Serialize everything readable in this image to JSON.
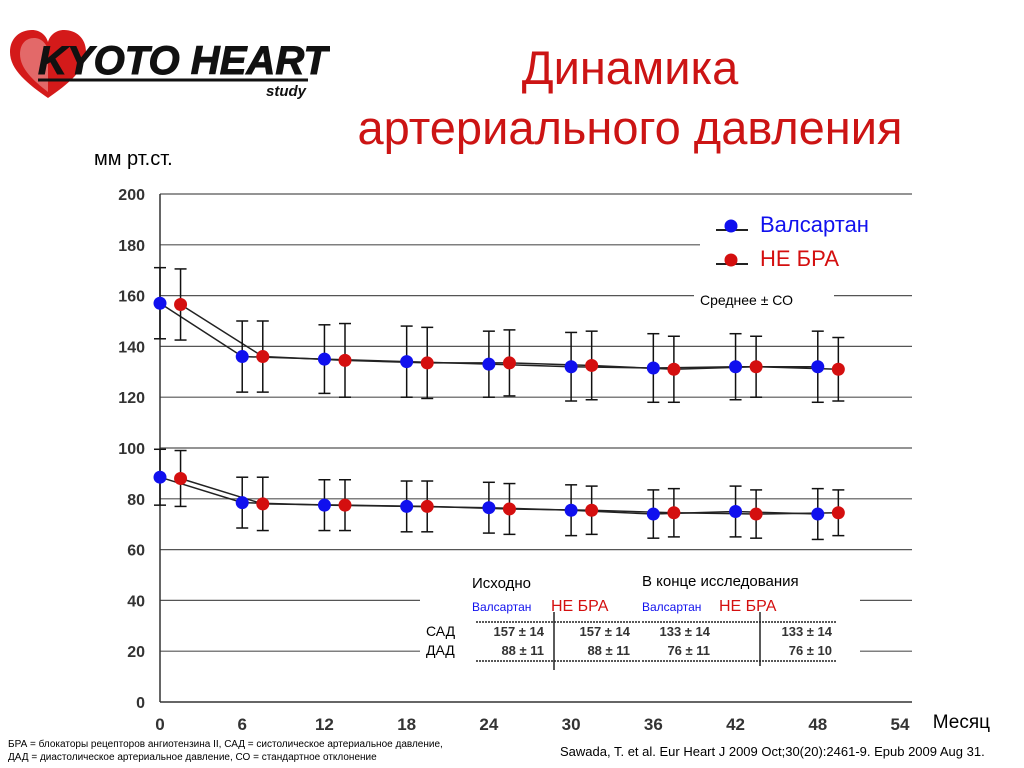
{
  "header": {
    "logo_text": "KYOTO HEART",
    "logo_sub": "study",
    "title_line1": "Динамика",
    "title_line2": "артериального давления"
  },
  "colors": {
    "title": "#cc1414",
    "valsartan": "#1010ee",
    "non_arb": "#d40f0f"
  },
  "y_unit_label": "мм рт.ст.",
  "chart_data": {
    "type": "line",
    "x_label": "Месяц",
    "x_ticks": [
      0,
      6,
      12,
      18,
      24,
      30,
      36,
      42,
      48,
      54
    ],
    "y_ticks": [
      0,
      20,
      40,
      60,
      80,
      100,
      120,
      140,
      160,
      180,
      200
    ],
    "xlim": [
      0,
      54
    ],
    "ylim": [
      0,
      200
    ],
    "grid": "horizontal",
    "legend_position": "top-right",
    "error_bar_label": "Среднее ± СО",
    "series": [
      {
        "name": "Валсартан",
        "group": "sbp",
        "color": "#1010ee",
        "x": [
          0,
          6,
          12,
          18,
          24,
          30,
          36,
          42,
          48
        ],
        "y": [
          157,
          136,
          135,
          134,
          133,
          132,
          131.5,
          132,
          132
        ],
        "err": [
          14,
          14,
          13.5,
          14,
          13,
          13.5,
          13.5,
          13,
          14
        ]
      },
      {
        "name": "НЕ БРА",
        "group": "sbp",
        "color": "#d40f0f",
        "x": [
          1.5,
          7.5,
          13.5,
          19.5,
          25.5,
          31.5,
          37.5,
          43.5,
          49.5
        ],
        "y": [
          156.5,
          136,
          134.5,
          133.5,
          133.5,
          132.5,
          131,
          132,
          131
        ],
        "err": [
          14,
          14,
          14.5,
          14,
          13,
          13.5,
          13,
          12,
          12.5
        ]
      },
      {
        "name": "Валсартан",
        "group": "dbp",
        "color": "#1010ee",
        "x": [
          0,
          6,
          12,
          18,
          24,
          30,
          36,
          42,
          48
        ],
        "y": [
          88.5,
          78.5,
          77.5,
          77,
          76.5,
          75.5,
          74,
          75,
          74
        ],
        "err": [
          11,
          10,
          10,
          10,
          10,
          10,
          9.5,
          10,
          10
        ]
      },
      {
        "name": "НЕ БРА",
        "group": "dbp",
        "color": "#d40f0f",
        "x": [
          1.5,
          7.5,
          13.5,
          19.5,
          25.5,
          31.5,
          37.5,
          43.5,
          49.5
        ],
        "y": [
          88,
          78,
          77.5,
          77,
          76,
          75.5,
          74.5,
          74,
          74.5
        ],
        "err": [
          11,
          10.5,
          10,
          10,
          10,
          9.5,
          9.5,
          9.5,
          9
        ]
      }
    ]
  },
  "table": {
    "baseline_header": "Исходно",
    "end_header": "В конце исследования",
    "valsartan_label": "Валсартан",
    "non_arb_label": "НЕ БРА",
    "row_labels": [
      "САД",
      "ДАД"
    ],
    "baseline_rows": [
      [
        "157 ± 14",
        "157 ± 14"
      ],
      [
        "88 ± 11",
        "88 ± 11"
      ]
    ],
    "end_rows": [
      [
        "133 ± 14",
        "133 ± 14"
      ],
      [
        "76 ± 11",
        "76 ± 10"
      ]
    ]
  },
  "footnote_line1": "БРА = блокаторы рецепторов ангиотензина II, САД = систолическое артериальное давление,",
  "footnote_line2": "ДАД = диастолическое артериальное давление, СО = стандартное отклонение",
  "citation": "Sawada, T. et al. Eur Heart J 2009 Oct;30(20):2461-9. Epub 2009 Aug 31."
}
